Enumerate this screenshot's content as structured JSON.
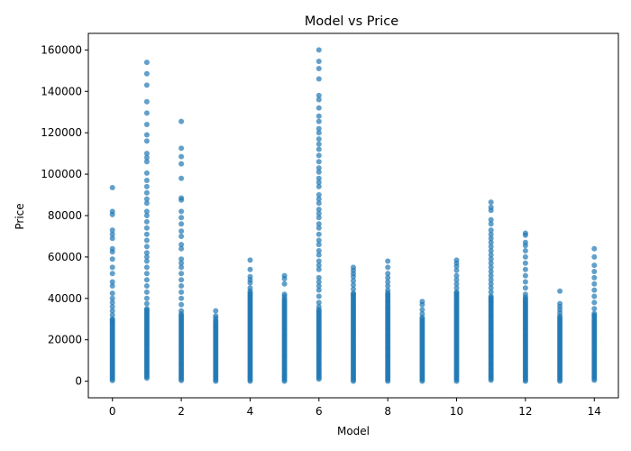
{
  "chart_data": {
    "type": "scatter",
    "title": "Model vs Price",
    "xlabel": "Model",
    "ylabel": "Price",
    "xlim": [
      -0.7,
      14.7
    ],
    "ylim": [
      -8000,
      168000
    ],
    "xticks": [
      0,
      2,
      4,
      6,
      8,
      10,
      12,
      14
    ],
    "yticks": [
      0,
      20000,
      40000,
      60000,
      80000,
      100000,
      120000,
      140000,
      160000
    ],
    "marker_color": "#1f77b4",
    "marker_alpha": 0.7,
    "grid": false,
    "series": [
      {
        "points": [
          [
            0,
            93500
          ],
          [
            0,
            82000
          ],
          [
            0,
            80500
          ],
          [
            0,
            73000
          ],
          [
            0,
            71000
          ],
          [
            0,
            69000
          ],
          [
            0,
            64000
          ],
          [
            0,
            62500
          ],
          [
            0,
            59000
          ],
          [
            0,
            55000
          ],
          [
            0,
            52000
          ],
          [
            0,
            48000
          ],
          [
            0,
            46000
          ],
          [
            0,
            42500
          ],
          [
            0,
            40000
          ],
          [
            0,
            38000
          ],
          [
            0,
            36000
          ],
          [
            0,
            34000
          ],
          [
            0,
            32000
          ],
          [
            0,
            30000
          ],
          [
            1,
            154000
          ],
          [
            1,
            148500
          ],
          [
            1,
            143000
          ],
          [
            1,
            135000
          ],
          [
            1,
            129500
          ],
          [
            1,
            124000
          ],
          [
            1,
            119000
          ],
          [
            1,
            116000
          ],
          [
            1,
            110000
          ],
          [
            1,
            108000
          ],
          [
            1,
            106000
          ],
          [
            1,
            100500
          ],
          [
            1,
            97000
          ],
          [
            1,
            94000
          ],
          [
            1,
            91000
          ],
          [
            1,
            88000
          ],
          [
            1,
            86000
          ],
          [
            1,
            82000
          ],
          [
            1,
            80000
          ],
          [
            1,
            77000
          ],
          [
            1,
            74000
          ],
          [
            1,
            71000
          ],
          [
            1,
            68000
          ],
          [
            1,
            65000
          ],
          [
            1,
            62000
          ],
          [
            1,
            60000
          ],
          [
            1,
            58000
          ],
          [
            1,
            55000
          ],
          [
            1,
            52000
          ],
          [
            1,
            49000
          ],
          [
            1,
            46000
          ],
          [
            1,
            43000
          ],
          [
            1,
            40000
          ],
          [
            1,
            37500
          ],
          [
            1,
            35000
          ],
          [
            2,
            125500
          ],
          [
            2,
            112500
          ],
          [
            2,
            108500
          ],
          [
            2,
            105000
          ],
          [
            2,
            98000
          ],
          [
            2,
            88500
          ],
          [
            2,
            87500
          ],
          [
            2,
            82000
          ],
          [
            2,
            79000
          ],
          [
            2,
            76000
          ],
          [
            2,
            72500
          ],
          [
            2,
            70000
          ],
          [
            2,
            66000
          ],
          [
            2,
            64000
          ],
          [
            2,
            59000
          ],
          [
            2,
            57000
          ],
          [
            2,
            55000
          ],
          [
            2,
            52000
          ],
          [
            2,
            49000
          ],
          [
            2,
            46000
          ],
          [
            2,
            43000
          ],
          [
            2,
            40000
          ],
          [
            2,
            37000
          ],
          [
            2,
            34000
          ],
          [
            3,
            34000
          ],
          [
            3,
            31500
          ],
          [
            3,
            30500
          ],
          [
            4,
            58500
          ],
          [
            4,
            54000
          ],
          [
            4,
            50500
          ],
          [
            4,
            49000
          ],
          [
            4,
            47500
          ],
          [
            4,
            45000
          ],
          [
            4,
            43500
          ],
          [
            5,
            51000
          ],
          [
            5,
            49500
          ],
          [
            5,
            47000
          ],
          [
            5,
            42000
          ],
          [
            5,
            41000
          ],
          [
            6,
            160000
          ],
          [
            6,
            154500
          ],
          [
            6,
            151000
          ],
          [
            6,
            146000
          ],
          [
            6,
            138000
          ],
          [
            6,
            136000
          ],
          [
            6,
            132000
          ],
          [
            6,
            128000
          ],
          [
            6,
            125500
          ],
          [
            6,
            122000
          ],
          [
            6,
            120000
          ],
          [
            6,
            117000
          ],
          [
            6,
            114500
          ],
          [
            6,
            112000
          ],
          [
            6,
            109000
          ],
          [
            6,
            106000
          ],
          [
            6,
            103000
          ],
          [
            6,
            101000
          ],
          [
            6,
            98000
          ],
          [
            6,
            96000
          ],
          [
            6,
            94000
          ],
          [
            6,
            90000
          ],
          [
            6,
            88000
          ],
          [
            6,
            86000
          ],
          [
            6,
            83000
          ],
          [
            6,
            81000
          ],
          [
            6,
            79000
          ],
          [
            6,
            76000
          ],
          [
            6,
            74000
          ],
          [
            6,
            71000
          ],
          [
            6,
            68000
          ],
          [
            6,
            66000
          ],
          [
            6,
            63000
          ],
          [
            6,
            61000
          ],
          [
            6,
            58000
          ],
          [
            6,
            56000
          ],
          [
            6,
            54000
          ],
          [
            6,
            50000
          ],
          [
            6,
            48000
          ],
          [
            6,
            46000
          ],
          [
            6,
            44000
          ],
          [
            6,
            41000
          ],
          [
            6,
            38000
          ],
          [
            6,
            36000
          ],
          [
            7,
            55000
          ],
          [
            7,
            53500
          ],
          [
            7,
            52000
          ],
          [
            7,
            50500
          ],
          [
            7,
            48500
          ],
          [
            7,
            46500
          ],
          [
            7,
            44500
          ],
          [
            7,
            42500
          ],
          [
            8,
            58000
          ],
          [
            8,
            55000
          ],
          [
            8,
            52000
          ],
          [
            8,
            50000
          ],
          [
            8,
            48000
          ],
          [
            8,
            46000
          ],
          [
            8,
            44000
          ],
          [
            9,
            38500
          ],
          [
            9,
            37000
          ],
          [
            9,
            34500
          ],
          [
            9,
            32500
          ],
          [
            10,
            58500
          ],
          [
            10,
            57000
          ],
          [
            10,
            55500
          ],
          [
            10,
            53500
          ],
          [
            10,
            51000
          ],
          [
            10,
            49000
          ],
          [
            10,
            47000
          ],
          [
            10,
            45000
          ],
          [
            10,
            43000
          ],
          [
            11,
            86500
          ],
          [
            11,
            84000
          ],
          [
            11,
            82500
          ],
          [
            11,
            78000
          ],
          [
            11,
            76000
          ],
          [
            11,
            73000
          ],
          [
            11,
            71000
          ],
          [
            11,
            69000
          ],
          [
            11,
            67000
          ],
          [
            11,
            65000
          ],
          [
            11,
            63000
          ],
          [
            11,
            61000
          ],
          [
            11,
            59000
          ],
          [
            11,
            57000
          ],
          [
            11,
            55000
          ],
          [
            11,
            53000
          ],
          [
            11,
            51000
          ],
          [
            11,
            49000
          ],
          [
            11,
            47000
          ],
          [
            11,
            45000
          ],
          [
            11,
            43000
          ],
          [
            11,
            41000
          ],
          [
            12,
            71500
          ],
          [
            12,
            70500
          ],
          [
            12,
            67000
          ],
          [
            12,
            65500
          ],
          [
            12,
            63000
          ],
          [
            12,
            60000
          ],
          [
            12,
            57000
          ],
          [
            12,
            54000
          ],
          [
            12,
            51000
          ],
          [
            12,
            48000
          ],
          [
            12,
            45000
          ],
          [
            12,
            42000
          ],
          [
            13,
            43500
          ],
          [
            13,
            37500
          ],
          [
            13,
            36000
          ],
          [
            13,
            34500
          ],
          [
            13,
            33000
          ],
          [
            13,
            31500
          ],
          [
            14,
            64000
          ],
          [
            14,
            60000
          ],
          [
            14,
            56000
          ],
          [
            14,
            53000
          ],
          [
            14,
            50000
          ],
          [
            14,
            47000
          ],
          [
            14,
            44000
          ],
          [
            14,
            41000
          ],
          [
            14,
            38000
          ],
          [
            14,
            35000
          ]
        ],
        "dense_min": [
          300,
          1500,
          300,
          0,
          0,
          0,
          1000,
          0,
          0,
          0,
          0,
          500,
          0,
          0,
          500
        ],
        "dense_max": [
          30000,
          35000,
          33000,
          30000,
          43000,
          40000,
          35000,
          42000,
          43000,
          31000,
          43000,
          41000,
          41000,
          31000,
          33000
        ]
      }
    ]
  }
}
